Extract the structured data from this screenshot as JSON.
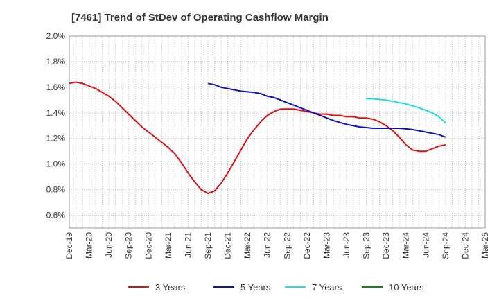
{
  "chart_data": {
    "type": "line",
    "title": "[7461]  Trend of StDev of Operating Cashflow Margin",
    "xlabel": "",
    "ylabel": "",
    "x_ticks": [
      "Dec-19",
      "Mar-20",
      "Jun-20",
      "Sep-20",
      "Dec-20",
      "Mar-21",
      "Jun-21",
      "Sep-21",
      "Dec-21",
      "Mar-22",
      "Jun-22",
      "Sep-22",
      "Dec-22",
      "Mar-23",
      "Jun-23",
      "Sep-23",
      "Dec-23",
      "Mar-24",
      "Jun-24",
      "Sep-24",
      "Dec-24",
      "Mar-25"
    ],
    "y_ticks": [
      "0.6%",
      "0.8%",
      "1.0%",
      "1.2%",
      "1.4%",
      "1.6%",
      "1.8%",
      "2.0%"
    ],
    "ylim": [
      0.5,
      2.0
    ],
    "grid": true,
    "legend_position": "bottom",
    "colors": {
      "3 Years": "#dd1111",
      "5 Years": "#1111bb",
      "7 Years": "#22dddd",
      "10 Years": "#118811"
    },
    "series": [
      {
        "name": "3 Years",
        "x": [
          "Dec-19",
          "Jan-20",
          "Feb-20",
          "Mar-20",
          "Apr-20",
          "May-20",
          "Jun-20",
          "Jul-20",
          "Aug-20",
          "Sep-20",
          "Oct-20",
          "Nov-20",
          "Dec-20",
          "Jan-21",
          "Feb-21",
          "Mar-21",
          "Apr-21",
          "May-21",
          "Jun-21",
          "Jul-21",
          "Aug-21",
          "Sep-21",
          "Oct-21",
          "Nov-21",
          "Dec-21",
          "Jan-22",
          "Feb-22",
          "Mar-22",
          "Apr-22",
          "May-22",
          "Jun-22",
          "Jul-22",
          "Aug-22",
          "Sep-22",
          "Oct-22",
          "Nov-22",
          "Dec-22",
          "Jan-23",
          "Feb-23",
          "Mar-23",
          "Apr-23",
          "May-23",
          "Jun-23",
          "Jul-23",
          "Aug-23",
          "Sep-23",
          "Oct-23",
          "Nov-23",
          "Dec-23",
          "Jan-24",
          "Feb-24",
          "Mar-24",
          "Apr-24",
          "May-24",
          "Jun-24",
          "Jul-24",
          "Aug-24",
          "Sep-24"
        ],
        "values": [
          1.63,
          1.64,
          1.63,
          1.61,
          1.59,
          1.56,
          1.53,
          1.49,
          1.44,
          1.39,
          1.34,
          1.29,
          1.25,
          1.21,
          1.17,
          1.13,
          1.08,
          1.01,
          0.93,
          0.86,
          0.8,
          0.77,
          0.79,
          0.85,
          0.93,
          1.02,
          1.11,
          1.2,
          1.27,
          1.33,
          1.38,
          1.41,
          1.43,
          1.43,
          1.43,
          1.42,
          1.41,
          1.4,
          1.39,
          1.39,
          1.38,
          1.38,
          1.37,
          1.37,
          1.36,
          1.36,
          1.35,
          1.33,
          1.3,
          1.26,
          1.21,
          1.15,
          1.11,
          1.1,
          1.1,
          1.12,
          1.14,
          1.15
        ]
      },
      {
        "name": "5 Years",
        "x": [
          "Sep-21",
          "Oct-21",
          "Nov-21",
          "Dec-21",
          "Jan-22",
          "Feb-22",
          "Mar-22",
          "Apr-22",
          "May-22",
          "Jun-22",
          "Jul-22",
          "Aug-22",
          "Sep-22",
          "Oct-22",
          "Nov-22",
          "Dec-22",
          "Jan-23",
          "Feb-23",
          "Mar-23",
          "Apr-23",
          "May-23",
          "Jun-23",
          "Jul-23",
          "Aug-23",
          "Sep-23",
          "Oct-23",
          "Nov-23",
          "Dec-23",
          "Jan-24",
          "Feb-24",
          "Mar-24",
          "Apr-24",
          "May-24",
          "Jun-24",
          "Jul-24",
          "Aug-24",
          "Sep-24"
        ],
        "values": [
          1.63,
          1.62,
          1.6,
          1.59,
          1.58,
          1.57,
          1.565,
          1.56,
          1.55,
          1.53,
          1.52,
          1.5,
          1.48,
          1.46,
          1.44,
          1.42,
          1.4,
          1.38,
          1.36,
          1.34,
          1.325,
          1.31,
          1.3,
          1.29,
          1.285,
          1.28,
          1.28,
          1.28,
          1.28,
          1.28,
          1.275,
          1.27,
          1.26,
          1.25,
          1.24,
          1.23,
          1.21
        ]
      },
      {
        "name": "7 Years",
        "x": [
          "Sep-23",
          "Oct-23",
          "Nov-23",
          "Dec-23",
          "Jan-24",
          "Feb-24",
          "Mar-24",
          "Apr-24",
          "May-24",
          "Jun-24",
          "Jul-24",
          "Aug-24",
          "Sep-24"
        ],
        "values": [
          1.51,
          1.51,
          1.505,
          1.5,
          1.49,
          1.48,
          1.47,
          1.455,
          1.44,
          1.42,
          1.4,
          1.37,
          1.32
        ]
      },
      {
        "name": "10 Years",
        "x": [],
        "values": []
      }
    ]
  }
}
